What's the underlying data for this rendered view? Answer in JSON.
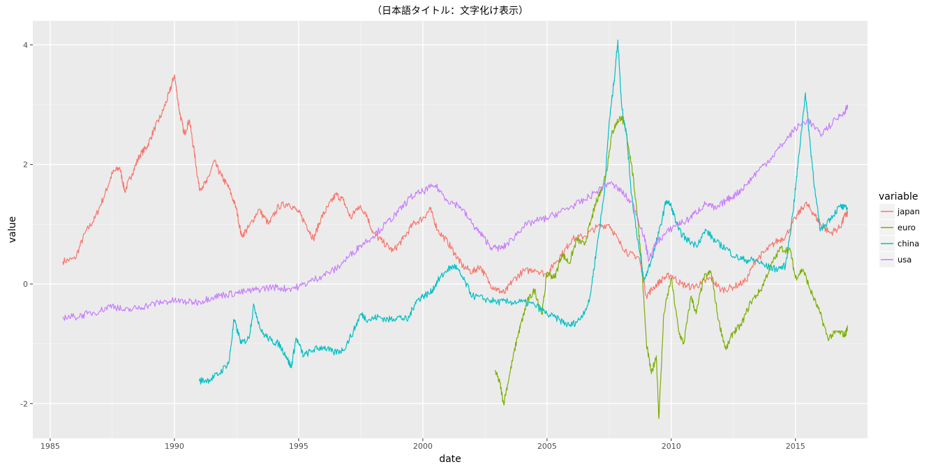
{
  "chart_data": {
    "type": "line",
    "title": "（日本語タイトル：文字化け表示）",
    "xlabel": "date",
    "ylabel": "value",
    "xlim": [
      1984.3,
      2017.9
    ],
    "ylim": [
      -2.58,
      4.4
    ],
    "x_ticks": [
      1985,
      1990,
      1995,
      2000,
      2005,
      2010,
      2015
    ],
    "y_ticks": [
      -2,
      0,
      2,
      4
    ],
    "grid": true,
    "legend": {
      "title": "variable",
      "position": "right"
    },
    "series": [
      {
        "name": "japan",
        "color": "#F8766D",
        "points": [
          [
            1985.5,
            0.38
          ],
          [
            1986.0,
            0.42
          ],
          [
            1986.4,
            0.85
          ],
          [
            1986.8,
            1.1
          ],
          [
            1987.2,
            1.5
          ],
          [
            1987.5,
            1.85
          ],
          [
            1987.8,
            1.95
          ],
          [
            1988.0,
            1.55
          ],
          [
            1988.3,
            1.85
          ],
          [
            1988.6,
            2.15
          ],
          [
            1988.9,
            2.3
          ],
          [
            1989.2,
            2.6
          ],
          [
            1989.5,
            2.85
          ],
          [
            1989.8,
            3.2
          ],
          [
            1990.0,
            3.5
          ],
          [
            1990.2,
            2.9
          ],
          [
            1990.4,
            2.5
          ],
          [
            1990.6,
            2.75
          ],
          [
            1990.8,
            2.2
          ],
          [
            1991.0,
            1.6
          ],
          [
            1991.3,
            1.7
          ],
          [
            1991.6,
            2.05
          ],
          [
            1991.9,
            1.8
          ],
          [
            1992.2,
            1.6
          ],
          [
            1992.5,
            1.25
          ],
          [
            1992.7,
            0.8
          ],
          [
            1993.0,
            0.95
          ],
          [
            1993.4,
            1.25
          ],
          [
            1993.8,
            1.0
          ],
          [
            1994.2,
            1.3
          ],
          [
            1994.6,
            1.35
          ],
          [
            1995.0,
            1.2
          ],
          [
            1995.3,
            1.0
          ],
          [
            1995.6,
            0.75
          ],
          [
            1995.9,
            1.1
          ],
          [
            1996.2,
            1.3
          ],
          [
            1996.5,
            1.5
          ],
          [
            1996.8,
            1.4
          ],
          [
            1997.1,
            1.1
          ],
          [
            1997.4,
            1.3
          ],
          [
            1997.7,
            1.2
          ],
          [
            1998.0,
            0.85
          ],
          [
            1998.4,
            0.7
          ],
          [
            1998.8,
            0.55
          ],
          [
            1999.2,
            0.75
          ],
          [
            1999.6,
            1.0
          ],
          [
            2000.0,
            1.1
          ],
          [
            2000.3,
            1.25
          ],
          [
            2000.6,
            0.9
          ],
          [
            2001.0,
            0.7
          ],
          [
            2001.3,
            0.5
          ],
          [
            2001.6,
            0.3
          ],
          [
            2002.0,
            0.2
          ],
          [
            2002.3,
            0.3
          ],
          [
            2002.7,
            0.0
          ],
          [
            2003.0,
            -0.1
          ],
          [
            2003.3,
            -0.15
          ],
          [
            2003.6,
            0.05
          ],
          [
            2004.0,
            0.2
          ],
          [
            2004.5,
            0.25
          ],
          [
            2005.0,
            0.15
          ],
          [
            2005.3,
            0.35
          ],
          [
            2005.7,
            0.55
          ],
          [
            2006.0,
            0.75
          ],
          [
            2006.5,
            0.8
          ],
          [
            2007.0,
            0.95
          ],
          [
            2007.5,
            1.0
          ],
          [
            2007.9,
            0.7
          ],
          [
            2008.3,
            0.5
          ],
          [
            2008.7,
            0.45
          ],
          [
            2009.0,
            -0.2
          ],
          [
            2009.3,
            -0.05
          ],
          [
            2009.7,
            0.1
          ],
          [
            2010.0,
            0.15
          ],
          [
            2010.4,
            0.0
          ],
          [
            2010.8,
            -0.05
          ],
          [
            2011.2,
            0.0
          ],
          [
            2011.6,
            0.1
          ],
          [
            2012.0,
            -0.1
          ],
          [
            2012.5,
            -0.05
          ],
          [
            2013.0,
            0.05
          ],
          [
            2013.4,
            0.4
          ],
          [
            2013.8,
            0.55
          ],
          [
            2014.2,
            0.7
          ],
          [
            2014.6,
            0.8
          ],
          [
            2015.0,
            1.1
          ],
          [
            2015.4,
            1.35
          ],
          [
            2015.7,
            1.2
          ],
          [
            2016.0,
            1.0
          ],
          [
            2016.4,
            0.85
          ],
          [
            2016.8,
            0.95
          ],
          [
            2017.0,
            1.15
          ],
          [
            2017.1,
            1.18
          ]
        ]
      },
      {
        "name": "euro",
        "color": "#7CAE00",
        "points": [
          [
            2002.9,
            -1.45
          ],
          [
            2003.1,
            -1.65
          ],
          [
            2003.25,
            -2.0
          ],
          [
            2003.5,
            -1.5
          ],
          [
            2003.8,
            -0.9
          ],
          [
            2004.0,
            -0.6
          ],
          [
            2004.2,
            -0.3
          ],
          [
            2004.5,
            -0.1
          ],
          [
            2004.8,
            -0.5
          ],
          [
            2005.0,
            0.2
          ],
          [
            2005.3,
            0.1
          ],
          [
            2005.6,
            0.5
          ],
          [
            2005.9,
            0.35
          ],
          [
            2006.2,
            0.75
          ],
          [
            2006.5,
            0.65
          ],
          [
            2006.8,
            1.1
          ],
          [
            2007.0,
            1.4
          ],
          [
            2007.2,
            1.6
          ],
          [
            2007.4,
            1.9
          ],
          [
            2007.6,
            2.5
          ],
          [
            2007.8,
            2.7
          ],
          [
            2008.0,
            2.8
          ],
          [
            2008.2,
            2.5
          ],
          [
            2008.4,
            2.0
          ],
          [
            2008.6,
            1.3
          ],
          [
            2008.8,
            0.4
          ],
          [
            2009.0,
            -1.0
          ],
          [
            2009.2,
            -1.5
          ],
          [
            2009.4,
            -1.2
          ],
          [
            2009.5,
            -2.25
          ],
          [
            2009.7,
            -0.5
          ],
          [
            2010.0,
            0.1
          ],
          [
            2010.3,
            -0.8
          ],
          [
            2010.5,
            -1.0
          ],
          [
            2010.8,
            -0.2
          ],
          [
            2011.0,
            -0.5
          ],
          [
            2011.3,
            0.1
          ],
          [
            2011.6,
            0.2
          ],
          [
            2011.9,
            -0.6
          ],
          [
            2012.2,
            -1.1
          ],
          [
            2012.5,
            -0.8
          ],
          [
            2012.8,
            -0.7
          ],
          [
            2013.2,
            -0.3
          ],
          [
            2013.6,
            -0.1
          ],
          [
            2014.0,
            0.3
          ],
          [
            2014.4,
            0.6
          ],
          [
            2014.8,
            0.55
          ],
          [
            2015.0,
            0.1
          ],
          [
            2015.3,
            0.25
          ],
          [
            2015.6,
            -0.1
          ],
          [
            2016.0,
            -0.5
          ],
          [
            2016.3,
            -0.9
          ],
          [
            2016.7,
            -0.8
          ],
          [
            2017.0,
            -0.85
          ],
          [
            2017.1,
            -0.72
          ]
        ]
      },
      {
        "name": "china",
        "color": "#00BFC4",
        "points": [
          [
            1991.0,
            -1.62
          ],
          [
            1991.4,
            -1.6
          ],
          [
            1991.8,
            -1.5
          ],
          [
            1992.2,
            -1.3
          ],
          [
            1992.4,
            -0.6
          ],
          [
            1992.7,
            -1.0
          ],
          [
            1993.0,
            -0.9
          ],
          [
            1993.2,
            -0.35
          ],
          [
            1993.5,
            -0.8
          ],
          [
            1993.9,
            -0.95
          ],
          [
            1994.2,
            -1.0
          ],
          [
            1994.5,
            -1.2
          ],
          [
            1994.7,
            -1.4
          ],
          [
            1994.9,
            -0.9
          ],
          [
            1995.2,
            -1.2
          ],
          [
            1995.6,
            -1.1
          ],
          [
            1996.0,
            -1.05
          ],
          [
            1996.4,
            -1.15
          ],
          [
            1996.8,
            -1.1
          ],
          [
            1997.2,
            -0.8
          ],
          [
            1997.5,
            -0.5
          ],
          [
            1997.8,
            -0.6
          ],
          [
            1998.2,
            -0.55
          ],
          [
            1998.6,
            -0.6
          ],
          [
            1999.0,
            -0.55
          ],
          [
            1999.4,
            -0.6
          ],
          [
            1999.7,
            -0.3
          ],
          [
            2000.0,
            -0.2
          ],
          [
            2000.3,
            -0.15
          ],
          [
            2000.6,
            0.05
          ],
          [
            2001.0,
            0.25
          ],
          [
            2001.3,
            0.3
          ],
          [
            2001.6,
            0.1
          ],
          [
            2002.0,
            -0.2
          ],
          [
            2002.5,
            -0.25
          ],
          [
            2003.0,
            -0.3
          ],
          [
            2003.5,
            -0.3
          ],
          [
            2004.0,
            -0.3
          ],
          [
            2004.5,
            -0.35
          ],
          [
            2005.0,
            -0.5
          ],
          [
            2005.5,
            -0.6
          ],
          [
            2005.9,
            -0.7
          ],
          [
            2006.3,
            -0.6
          ],
          [
            2006.7,
            -0.3
          ],
          [
            2007.0,
            0.6
          ],
          [
            2007.3,
            1.5
          ],
          [
            2007.5,
            2.7
          ],
          [
            2007.7,
            3.4
          ],
          [
            2007.85,
            4.08
          ],
          [
            2008.0,
            3.0
          ],
          [
            2008.2,
            2.5
          ],
          [
            2008.4,
            1.5
          ],
          [
            2008.7,
            0.6
          ],
          [
            2008.9,
            0.05
          ],
          [
            2009.2,
            0.4
          ],
          [
            2009.5,
            0.85
          ],
          [
            2009.8,
            1.4
          ],
          [
            2010.0,
            1.3
          ],
          [
            2010.3,
            0.9
          ],
          [
            2010.6,
            0.75
          ],
          [
            2011.0,
            0.65
          ],
          [
            2011.4,
            0.9
          ],
          [
            2011.8,
            0.7
          ],
          [
            2012.2,
            0.6
          ],
          [
            2012.6,
            0.45
          ],
          [
            2013.0,
            0.4
          ],
          [
            2013.4,
            0.4
          ],
          [
            2013.8,
            0.3
          ],
          [
            2014.2,
            0.25
          ],
          [
            2014.6,
            0.3
          ],
          [
            2014.9,
            1.2
          ],
          [
            2015.1,
            2.0
          ],
          [
            2015.4,
            3.2
          ],
          [
            2015.6,
            2.3
          ],
          [
            2015.8,
            1.5
          ],
          [
            2016.0,
            0.9
          ],
          [
            2016.4,
            1.1
          ],
          [
            2016.8,
            1.3
          ],
          [
            2017.1,
            1.25
          ]
        ]
      },
      {
        "name": "usa",
        "color": "#C77CFF",
        "points": [
          [
            1985.5,
            -0.55
          ],
          [
            1986.0,
            -0.55
          ],
          [
            1986.5,
            -0.5
          ],
          [
            1987.0,
            -0.45
          ],
          [
            1987.5,
            -0.35
          ],
          [
            1988.0,
            -0.45
          ],
          [
            1988.5,
            -0.4
          ],
          [
            1989.0,
            -0.35
          ],
          [
            1989.5,
            -0.3
          ],
          [
            1990.0,
            -0.28
          ],
          [
            1990.5,
            -0.3
          ],
          [
            1991.0,
            -0.3
          ],
          [
            1991.5,
            -0.22
          ],
          [
            1992.0,
            -0.18
          ],
          [
            1992.5,
            -0.15
          ],
          [
            1993.0,
            -0.12
          ],
          [
            1993.5,
            -0.08
          ],
          [
            1994.0,
            -0.05
          ],
          [
            1994.5,
            -0.08
          ],
          [
            1995.0,
            -0.05
          ],
          [
            1995.5,
            0.05
          ],
          [
            1996.0,
            0.15
          ],
          [
            1996.5,
            0.25
          ],
          [
            1997.0,
            0.45
          ],
          [
            1997.5,
            0.65
          ],
          [
            1998.0,
            0.8
          ],
          [
            1998.5,
            1.0
          ],
          [
            1999.0,
            1.2
          ],
          [
            1999.5,
            1.45
          ],
          [
            2000.0,
            1.55
          ],
          [
            2000.5,
            1.65
          ],
          [
            2001.0,
            1.4
          ],
          [
            2001.5,
            1.3
          ],
          [
            2002.0,
            1.0
          ],
          [
            2002.4,
            0.8
          ],
          [
            2002.8,
            0.6
          ],
          [
            2003.2,
            0.6
          ],
          [
            2003.6,
            0.75
          ],
          [
            2004.0,
            0.95
          ],
          [
            2004.5,
            1.05
          ],
          [
            2005.0,
            1.1
          ],
          [
            2005.5,
            1.2
          ],
          [
            2006.0,
            1.3
          ],
          [
            2006.5,
            1.4
          ],
          [
            2007.0,
            1.55
          ],
          [
            2007.5,
            1.7
          ],
          [
            2008.0,
            1.55
          ],
          [
            2008.5,
            1.3
          ],
          [
            2008.9,
            0.8
          ],
          [
            2009.1,
            0.4
          ],
          [
            2009.4,
            0.7
          ],
          [
            2009.8,
            0.85
          ],
          [
            2010.2,
            1.0
          ],
          [
            2010.6,
            1.05
          ],
          [
            2011.0,
            1.2
          ],
          [
            2011.4,
            1.35
          ],
          [
            2011.8,
            1.25
          ],
          [
            2012.2,
            1.4
          ],
          [
            2012.6,
            1.5
          ],
          [
            2013.0,
            1.65
          ],
          [
            2013.5,
            1.9
          ],
          [
            2014.0,
            2.1
          ],
          [
            2014.5,
            2.35
          ],
          [
            2015.0,
            2.6
          ],
          [
            2015.5,
            2.75
          ],
          [
            2016.0,
            2.5
          ],
          [
            2016.5,
            2.7
          ],
          [
            2017.0,
            2.9
          ],
          [
            2017.1,
            3.0
          ]
        ]
      }
    ]
  }
}
